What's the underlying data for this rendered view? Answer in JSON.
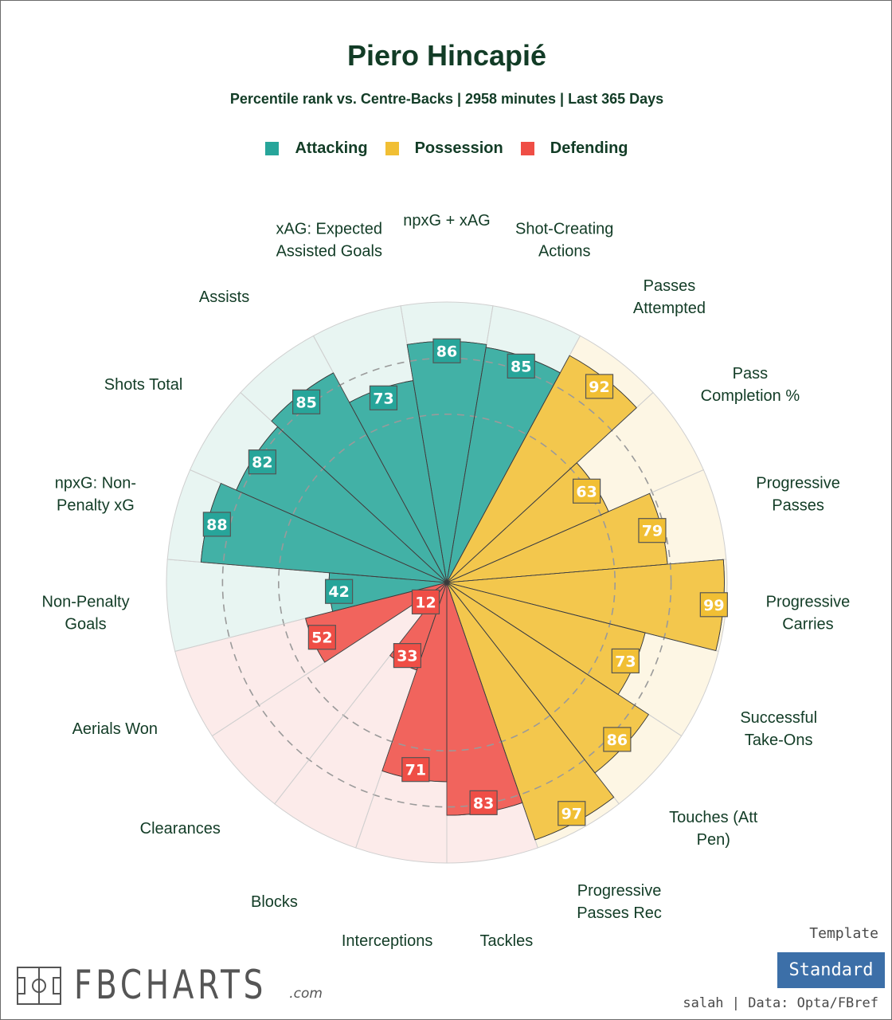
{
  "chart_data": {
    "type": "polar-bar",
    "title": "Piero Hincapié",
    "subtitle": "Percentile rank vs. Centre-Backs | 2958 minutes | Last 365 Days",
    "rmax": 100,
    "legend": [
      {
        "name": "Attacking",
        "color": "#27a59a"
      },
      {
        "name": "Possession",
        "color": "#f1bf34"
      },
      {
        "name": "Defending",
        "color": "#ef4e46"
      }
    ],
    "categories": [
      "npxG + xAG",
      "Shot-Creating Actions",
      "Passes Attempted",
      "Pass Completion %",
      "Progressive Passes",
      "Progressive Carries",
      "Successful Take-Ons",
      "Touches (Att Pen)",
      "Progressive Passes Rec",
      "Tackles",
      "Interceptions",
      "Blocks",
      "Clearances",
      "Aerials Won",
      "Non-Penalty Goals",
      "npxG: Non-Penalty xG",
      "Shots Total",
      "Assists",
      "xAG: Expected Assisted Goals"
    ],
    "values": [
      86,
      85,
      92,
      63,
      79,
      99,
      73,
      86,
      97,
      83,
      71,
      33,
      12,
      52,
      42,
      88,
      82,
      85,
      73
    ],
    "groups": [
      "Attacking",
      "Attacking",
      "Possession",
      "Possession",
      "Possession",
      "Possession",
      "Possession",
      "Possession",
      "Possession",
      "Defending",
      "Defending",
      "Defending",
      "Defending",
      "Defending",
      "Attacking",
      "Attacking",
      "Attacking",
      "Attacking",
      "Attacking"
    ],
    "display_labels": [
      [
        "npxG + xAG"
      ],
      [
        "Shot-Creating",
        "Actions"
      ],
      [
        "Passes",
        "Attempted"
      ],
      [
        "Pass",
        "Completion %"
      ],
      [
        "Progressive",
        "Passes"
      ],
      [
        "Progressive",
        "Carries"
      ],
      [
        "Successful",
        "Take-Ons"
      ],
      [
        "Touches (Att",
        "Pen)"
      ],
      [
        "Progressive",
        "Passes Rec"
      ],
      [
        "Tackles"
      ],
      [
        "Interceptions"
      ],
      [
        "Blocks"
      ],
      [
        "Clearances"
      ],
      [
        "Aerials Won"
      ],
      [
        "Non-Penalty",
        "Goals"
      ],
      [
        "npxG: Non-",
        "Penalty xG"
      ],
      [
        "Shots Total"
      ],
      [
        "Assists"
      ],
      [
        "xAG: Expected",
        "Assisted Goals"
      ]
    ],
    "colors": {
      "Attacking": {
        "bar": "#27a59a",
        "bg": "#e8f5f2",
        "box": "#27a59a"
      },
      "Possession": {
        "bar": "#f1bf34",
        "bg": "#fdf6e4",
        "box": "#f1bf34"
      },
      "Defending": {
        "bar": "#ef4e46",
        "bg": "#fcebea",
        "box": "#ef4e46"
      }
    }
  },
  "footer": {
    "template_label": "Template",
    "template_value": "Standard",
    "credit": "salah | Data: Opta/FBref",
    "logo_text": "FBCHARTS",
    "logo_suffix": ".com"
  }
}
